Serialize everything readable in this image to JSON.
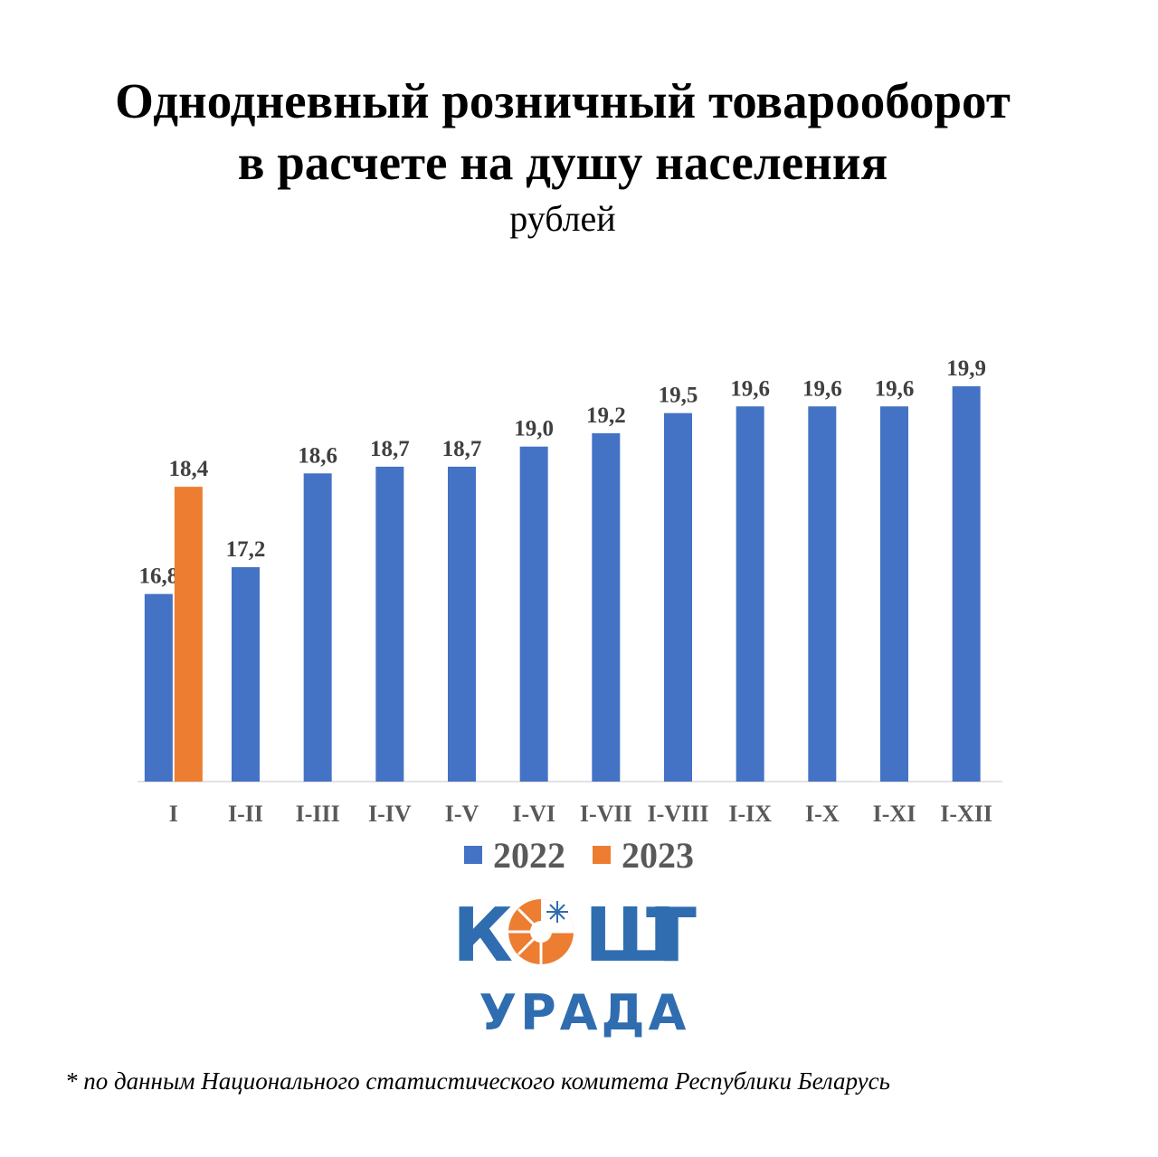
{
  "title_line1": "Однодневный розничный товарооборот",
  "title_line2": "в расчете на душу населения",
  "subtitle": "рублей",
  "chart_data": {
    "type": "bar",
    "categories": [
      "I",
      "I-II",
      "I-III",
      "I-IV",
      "I-V",
      "I-VI",
      "I-VII",
      "I-VIII",
      "I-IX",
      "I-X",
      "I-XI",
      "I-XII"
    ],
    "series": [
      {
        "name": "2022",
        "color": "#4472c4",
        "values": [
          16.8,
          17.2,
          18.6,
          18.7,
          18.7,
          19.0,
          19.2,
          19.5,
          19.6,
          19.6,
          19.6,
          19.9
        ]
      },
      {
        "name": "2023",
        "color": "#ed7d31",
        "values": [
          18.4,
          null,
          null,
          null,
          null,
          null,
          null,
          null,
          null,
          null,
          null,
          null
        ]
      }
    ],
    "value_labels": [
      [
        "16,8",
        "17,2",
        "18,6",
        "18,7",
        "18,7",
        "19,0",
        "19,2",
        "19,5",
        "19,6",
        "19,6",
        "19,6",
        "19,9"
      ],
      [
        "18,4",
        null,
        null,
        null,
        null,
        null,
        null,
        null,
        null,
        null,
        null,
        null
      ]
    ],
    "ylim": [
      14.0,
      20.4
    ],
    "legend_position": "bottom",
    "grid": false
  },
  "legend": [
    {
      "label": "2022",
      "color": "#4472c4"
    },
    {
      "label": "2023",
      "color": "#ed7d31"
    }
  ],
  "logo": {
    "line1": "КОШТ",
    "line2": "УРАДА"
  },
  "footnote": "* по данным Национального статистического комитета Республики Беларусь"
}
